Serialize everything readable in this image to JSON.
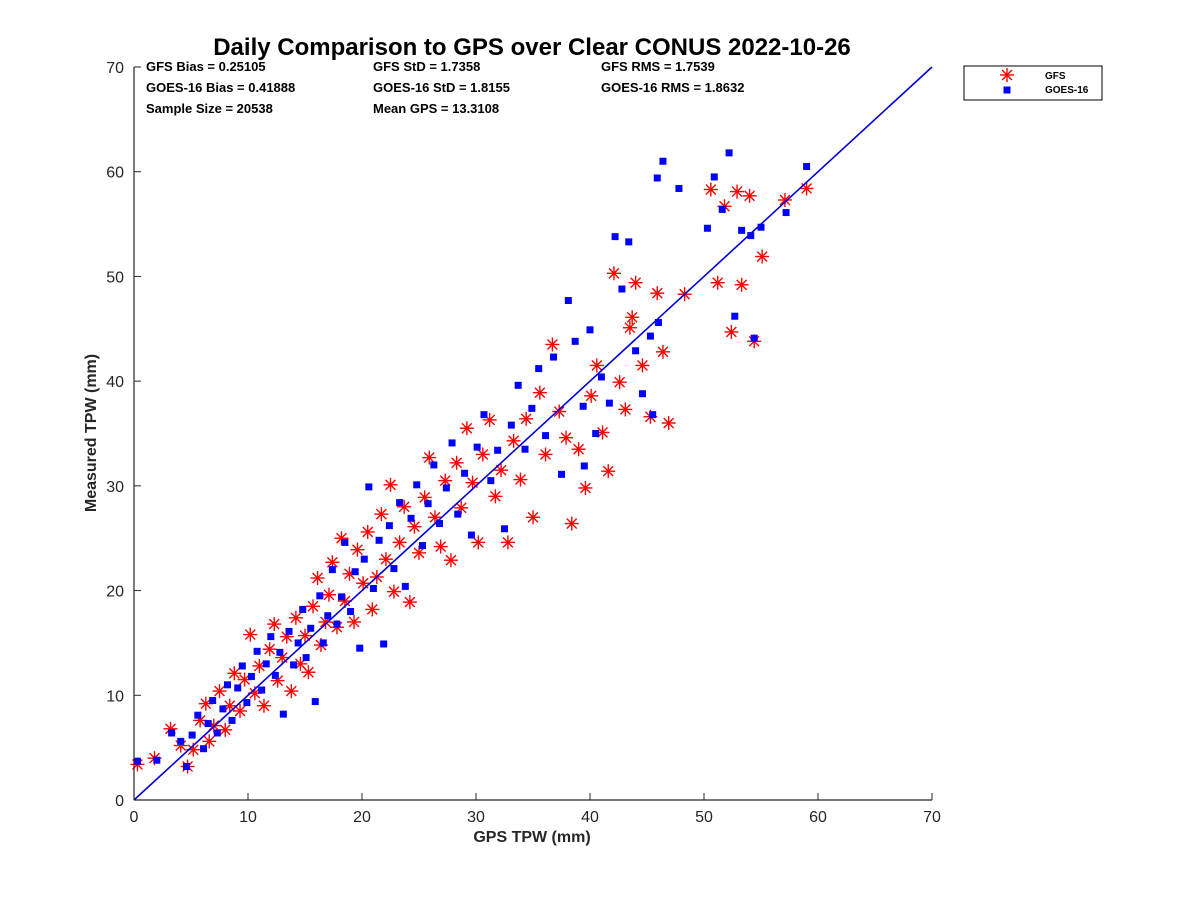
{
  "chart_data": {
    "type": "scatter",
    "title": "Daily Comparison to GPS over Clear CONUS 2022-10-26",
    "xlabel": "GPS TPW (mm)",
    "ylabel": "Measured TPW (mm)",
    "xlim": [
      0,
      70
    ],
    "ylim": [
      0,
      70
    ],
    "xticks": [
      "0",
      "10",
      "20",
      "30",
      "40",
      "50",
      "60",
      "70"
    ],
    "yticks": [
      "0",
      "10",
      "20",
      "30",
      "40",
      "50",
      "60",
      "70"
    ],
    "stats": [
      "GFS Bias = 0.25105",
      "GFS StD = 1.7358",
      "GFS RMS = 1.7539",
      "GOES-16 Bias = 0.41888",
      "GOES-16 StD = 1.8155",
      "GOES-16 RMS = 1.8632",
      "Sample Size = 20538",
      "Mean GPS = 13.3108"
    ],
    "legend": {
      "location": "outside-top-right",
      "entries": [
        "GFS",
        "GOES-16"
      ]
    },
    "reference_line": {
      "label": "1:1",
      "x": [
        0,
        70
      ],
      "y": [
        0,
        70
      ],
      "color": "#0000dd"
    },
    "series": [
      {
        "name": "GFS",
        "marker": "asterisk",
        "color": "#ff0000",
        "points": [
          [
            0.3,
            3.4
          ],
          [
            1.8,
            4.0
          ],
          [
            3.2,
            6.8
          ],
          [
            4.1,
            5.2
          ],
          [
            4.7,
            3.2
          ],
          [
            5.2,
            4.8
          ],
          [
            5.8,
            7.6
          ],
          [
            6.3,
            9.2
          ],
          [
            6.6,
            5.6
          ],
          [
            7.0,
            7.1
          ],
          [
            7.5,
            10.4
          ],
          [
            8.0,
            6.7
          ],
          [
            8.4,
            9.0
          ],
          [
            8.8,
            12.1
          ],
          [
            9.3,
            8.5
          ],
          [
            9.7,
            11.5
          ],
          [
            10.2,
            15.8
          ],
          [
            10.6,
            10.2
          ],
          [
            11.0,
            12.8
          ],
          [
            11.4,
            9.0
          ],
          [
            11.9,
            14.4
          ],
          [
            12.3,
            16.8
          ],
          [
            12.6,
            11.4
          ],
          [
            13.0,
            13.6
          ],
          [
            13.4,
            15.6
          ],
          [
            13.8,
            10.4
          ],
          [
            14.2,
            17.4
          ],
          [
            14.6,
            13.0
          ],
          [
            15.0,
            15.7
          ],
          [
            15.3,
            12.2
          ],
          [
            15.7,
            18.5
          ],
          [
            16.1,
            21.2
          ],
          [
            16.4,
            14.8
          ],
          [
            16.8,
            17.0
          ],
          [
            17.1,
            19.6
          ],
          [
            17.4,
            22.7
          ],
          [
            17.8,
            16.5
          ],
          [
            18.2,
            25.0
          ],
          [
            18.5,
            19.0
          ],
          [
            18.9,
            21.6
          ],
          [
            19.3,
            17.0
          ],
          [
            19.6,
            23.9
          ],
          [
            20.1,
            20.7
          ],
          [
            20.5,
            25.6
          ],
          [
            20.9,
            18.2
          ],
          [
            21.3,
            21.3
          ],
          [
            21.7,
            27.3
          ],
          [
            22.1,
            23.0
          ],
          [
            22.5,
            30.1
          ],
          [
            22.8,
            19.9
          ],
          [
            23.3,
            24.6
          ],
          [
            23.7,
            28.0
          ],
          [
            24.2,
            18.9
          ],
          [
            24.6,
            26.1
          ],
          [
            25.0,
            23.6
          ],
          [
            25.5,
            28.9
          ],
          [
            25.9,
            32.7
          ],
          [
            26.4,
            27.0
          ],
          [
            26.9,
            24.2
          ],
          [
            27.3,
            30.5
          ],
          [
            27.8,
            22.9
          ],
          [
            28.3,
            32.2
          ],
          [
            28.7,
            27.9
          ],
          [
            29.2,
            35.5
          ],
          [
            29.7,
            30.3
          ],
          [
            30.2,
            24.6
          ],
          [
            30.6,
            33.0
          ],
          [
            31.2,
            36.3
          ],
          [
            31.7,
            29.0
          ],
          [
            32.2,
            31.5
          ],
          [
            32.8,
            24.6
          ],
          [
            33.3,
            34.3
          ],
          [
            33.9,
            30.6
          ],
          [
            34.4,
            36.4
          ],
          [
            35.0,
            27.0
          ],
          [
            35.6,
            38.9
          ],
          [
            36.1,
            33.0
          ],
          [
            36.7,
            43.5
          ],
          [
            37.3,
            37.1
          ],
          [
            37.9,
            34.6
          ],
          [
            38.4,
            26.4
          ],
          [
            39.0,
            33.5
          ],
          [
            39.6,
            29.8
          ],
          [
            40.1,
            38.6
          ],
          [
            40.6,
            41.5
          ],
          [
            41.1,
            35.1
          ],
          [
            41.6,
            31.4
          ],
          [
            42.1,
            50.3
          ],
          [
            42.6,
            39.9
          ],
          [
            43.1,
            37.3
          ],
          [
            43.7,
            46.1
          ],
          [
            44.0,
            49.4
          ],
          [
            44.6,
            41.5
          ],
          [
            45.3,
            36.6
          ],
          [
            45.9,
            48.4
          ],
          [
            46.4,
            42.8
          ],
          [
            46.9,
            36.0
          ],
          [
            48.3,
            48.3
          ],
          [
            50.6,
            58.3
          ],
          [
            51.2,
            49.4
          ],
          [
            51.8,
            56.7
          ],
          [
            52.4,
            44.7
          ],
          [
            52.9,
            58.1
          ],
          [
            53.3,
            49.2
          ],
          [
            54.0,
            57.7
          ],
          [
            54.4,
            43.8
          ],
          [
            55.1,
            51.9
          ],
          [
            57.1,
            57.3
          ],
          [
            59.0,
            58.4
          ],
          [
            43.5,
            45.1
          ]
        ]
      },
      {
        "name": "GOES-16",
        "marker": "square",
        "color": "#0000ff",
        "points": [
          [
            0.3,
            3.7
          ],
          [
            2.0,
            3.8
          ],
          [
            3.3,
            6.4
          ],
          [
            4.1,
            5.6
          ],
          [
            4.6,
            3.2
          ],
          [
            5.1,
            6.2
          ],
          [
            5.6,
            8.1
          ],
          [
            6.1,
            4.9
          ],
          [
            6.5,
            7.3
          ],
          [
            6.9,
            9.5
          ],
          [
            7.3,
            6.4
          ],
          [
            7.8,
            8.7
          ],
          [
            8.2,
            11.0
          ],
          [
            8.6,
            7.6
          ],
          [
            9.1,
            10.7
          ],
          [
            9.5,
            12.8
          ],
          [
            9.9,
            9.3
          ],
          [
            10.3,
            11.8
          ],
          [
            10.8,
            14.2
          ],
          [
            11.2,
            10.5
          ],
          [
            11.6,
            13.0
          ],
          [
            12.0,
            15.6
          ],
          [
            12.4,
            11.9
          ],
          [
            12.8,
            14.1
          ],
          [
            13.1,
            8.2
          ],
          [
            13.6,
            16.1
          ],
          [
            14.0,
            12.9
          ],
          [
            14.4,
            15.0
          ],
          [
            14.8,
            18.2
          ],
          [
            15.1,
            13.6
          ],
          [
            15.5,
            16.4
          ],
          [
            15.9,
            9.4
          ],
          [
            16.3,
            19.5
          ],
          [
            16.6,
            15.0
          ],
          [
            17.0,
            17.6
          ],
          [
            17.4,
            22.0
          ],
          [
            17.8,
            16.8
          ],
          [
            18.2,
            19.4
          ],
          [
            18.5,
            24.6
          ],
          [
            19.0,
            18.0
          ],
          [
            19.4,
            21.8
          ],
          [
            19.8,
            14.5
          ],
          [
            20.2,
            23.0
          ],
          [
            20.6,
            29.9
          ],
          [
            21.0,
            20.2
          ],
          [
            21.5,
            24.8
          ],
          [
            21.9,
            14.9
          ],
          [
            22.4,
            26.2
          ],
          [
            22.8,
            22.1
          ],
          [
            23.3,
            28.4
          ],
          [
            23.8,
            20.4
          ],
          [
            24.3,
            26.9
          ],
          [
            24.8,
            30.1
          ],
          [
            25.3,
            24.3
          ],
          [
            25.8,
            28.3
          ],
          [
            26.3,
            32.0
          ],
          [
            26.8,
            26.4
          ],
          [
            27.4,
            29.8
          ],
          [
            27.9,
            34.1
          ],
          [
            28.4,
            27.3
          ],
          [
            29.0,
            31.2
          ],
          [
            29.6,
            25.3
          ],
          [
            30.1,
            33.7
          ],
          [
            30.7,
            36.8
          ],
          [
            31.3,
            30.5
          ],
          [
            31.9,
            33.4
          ],
          [
            32.5,
            25.9
          ],
          [
            33.1,
            35.8
          ],
          [
            33.7,
            39.6
          ],
          [
            34.3,
            33.5
          ],
          [
            34.9,
            37.4
          ],
          [
            35.5,
            41.2
          ],
          [
            36.1,
            34.8
          ],
          [
            36.8,
            42.3
          ],
          [
            37.5,
            31.1
          ],
          [
            38.1,
            47.7
          ],
          [
            38.7,
            43.8
          ],
          [
            39.4,
            37.6
          ],
          [
            40.0,
            44.9
          ],
          [
            40.5,
            35.0
          ],
          [
            41.0,
            40.4
          ],
          [
            41.7,
            37.9
          ],
          [
            42.2,
            53.8
          ],
          [
            42.8,
            48.8
          ],
          [
            43.4,
            53.3
          ],
          [
            44.0,
            42.9
          ],
          [
            44.6,
            38.8
          ],
          [
            45.3,
            44.3
          ],
          [
            45.9,
            59.4
          ],
          [
            46.4,
            61.0
          ],
          [
            47.8,
            58.4
          ],
          [
            50.3,
            54.6
          ],
          [
            50.9,
            59.5
          ],
          [
            51.6,
            56.4
          ],
          [
            52.2,
            61.8
          ],
          [
            52.7,
            46.2
          ],
          [
            53.3,
            54.4
          ],
          [
            54.1,
            53.9
          ],
          [
            54.4,
            44.1
          ],
          [
            55.0,
            54.7
          ],
          [
            57.2,
            56.1
          ],
          [
            59.0,
            60.5
          ],
          [
            46.0,
            45.6
          ],
          [
            45.5,
            36.8
          ],
          [
            39.5,
            31.9
          ]
        ]
      }
    ]
  }
}
